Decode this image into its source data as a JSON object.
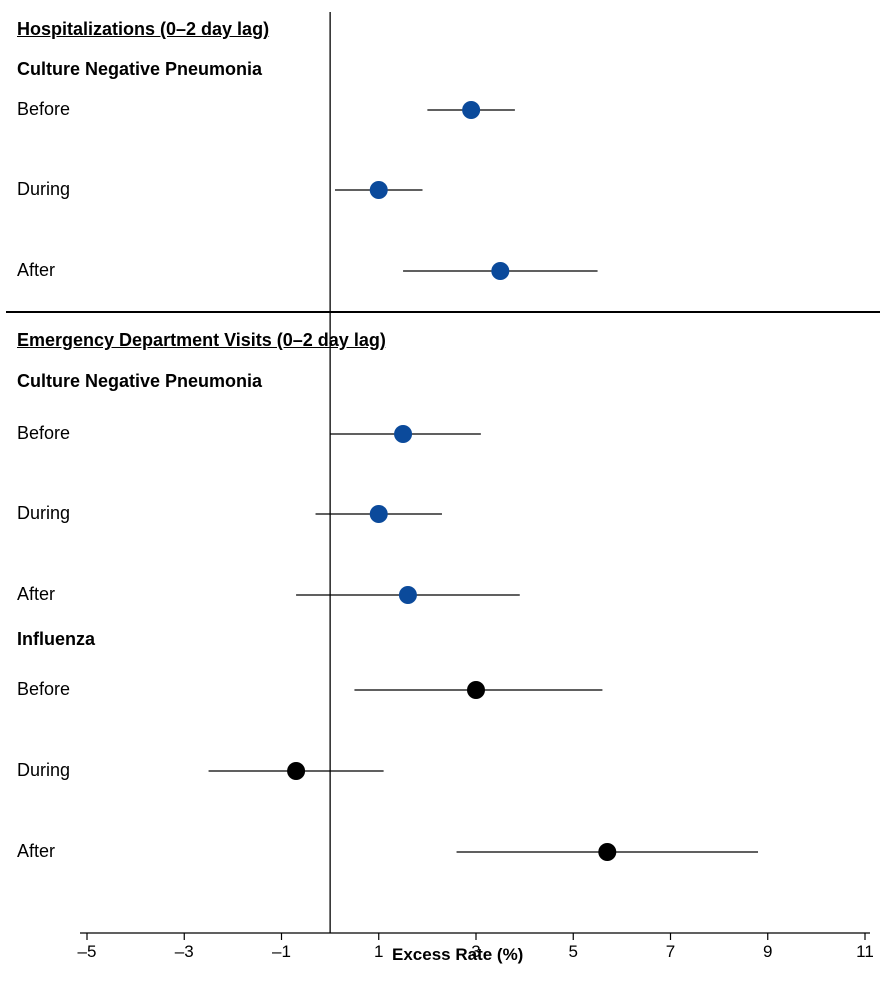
{
  "chart_data": {
    "type": "forest",
    "xlabel": "Excess Rate (%)",
    "xlim": [
      -5,
      11
    ],
    "xticks": [
      "–5",
      "–3",
      "–1",
      "1",
      "3",
      "5",
      "7",
      "9",
      "11"
    ],
    "reference_line_x": 0,
    "series_colors": {
      "Culture Negative Pneumonia": "#0b4a9b",
      "Influenza": "#000000"
    },
    "panels": [
      {
        "title": "Hospitalizations (0–2 day lag)",
        "groups": [
          {
            "name": "Culture Negative Pneumonia",
            "rows": [
              {
                "label": "Before",
                "estimate": 2.9,
                "ci": [
                  2.0,
                  3.8
                ]
              },
              {
                "label": "During",
                "estimate": 1.0,
                "ci": [
                  0.1,
                  1.9
                ]
              },
              {
                "label": "After",
                "estimate": 3.5,
                "ci": [
                  1.5,
                  5.5
                ]
              }
            ]
          }
        ]
      },
      {
        "title": "Emergency Department Visits  (0–2 day lag)",
        "groups": [
          {
            "name": "Culture Negative Pneumonia",
            "rows": [
              {
                "label": "Before",
                "estimate": 1.5,
                "ci": [
                  0.0,
                  3.1
                ]
              },
              {
                "label": "During",
                "estimate": 1.0,
                "ci": [
                  -0.3,
                  2.3
                ]
              },
              {
                "label": "After",
                "estimate": 1.6,
                "ci": [
                  -0.7,
                  3.9
                ]
              }
            ]
          },
          {
            "name": "Influenza",
            "rows": [
              {
                "label": "Before",
                "estimate": 3.0,
                "ci": [
                  0.5,
                  5.6
                ]
              },
              {
                "label": "During",
                "estimate": -0.7,
                "ci": [
                  -2.5,
                  1.1
                ]
              },
              {
                "label": "After",
                "estimate": 5.7,
                "ci": [
                  2.6,
                  8.8
                ]
              }
            ]
          }
        ]
      }
    ]
  }
}
